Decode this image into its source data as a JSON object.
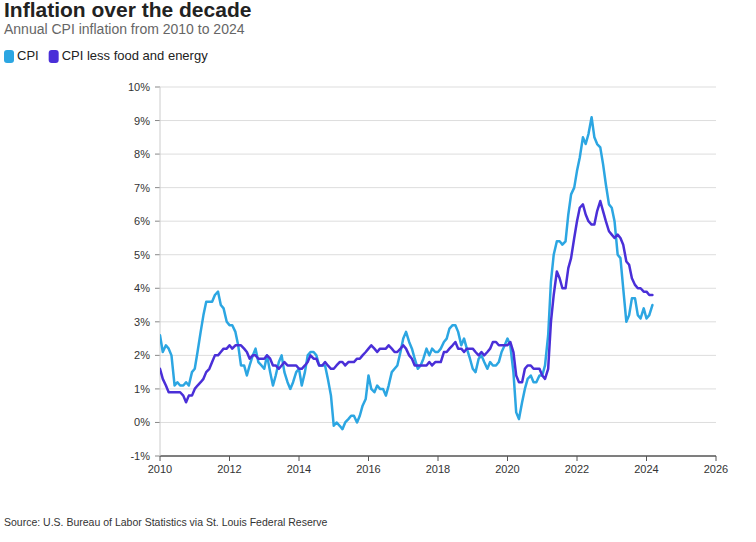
{
  "chart_data": {
    "type": "line",
    "title": "Inflation over the decade",
    "subtitle": "Annual CPI inflation from 2010 to 2024",
    "source": "Source: U.S. Bureau of Labor Statistics via St. Louis Federal Reserve",
    "legend": "top-left",
    "grid": true,
    "xlim": [
      2010,
      2026
    ],
    "xticks": [
      2010,
      2012,
      2014,
      2016,
      2018,
      2020,
      2022,
      2024,
      2026
    ],
    "ylim": [
      -1,
      10
    ],
    "yticks": [
      {
        "value": -1,
        "label": "-1%"
      },
      {
        "value": 0,
        "label": "0%"
      },
      {
        "value": 1,
        "label": "1%"
      },
      {
        "value": 2,
        "label": "2%"
      },
      {
        "value": 3,
        "label": "3%"
      },
      {
        "value": 4,
        "label": "4%"
      },
      {
        "value": 5,
        "label": "5%"
      },
      {
        "value": 6,
        "label": "6%"
      },
      {
        "value": 7,
        "label": "7%"
      },
      {
        "value": 8,
        "label": "8%"
      },
      {
        "value": 9,
        "label": "9%"
      },
      {
        "value": 10,
        "label": "10%"
      }
    ],
    "x": [
      2010,
      2010.08,
      2010.17,
      2010.25,
      2010.33,
      2010.42,
      2010.5,
      2010.58,
      2010.67,
      2010.75,
      2010.83,
      2010.92,
      2011,
      2011.08,
      2011.17,
      2011.25,
      2011.33,
      2011.42,
      2011.5,
      2011.58,
      2011.67,
      2011.75,
      2011.83,
      2011.92,
      2012,
      2012.08,
      2012.17,
      2012.25,
      2012.33,
      2012.42,
      2012.5,
      2012.58,
      2012.67,
      2012.75,
      2012.83,
      2012.92,
      2013,
      2013.08,
      2013.17,
      2013.25,
      2013.33,
      2013.42,
      2013.5,
      2013.58,
      2013.67,
      2013.75,
      2013.83,
      2013.92,
      2014,
      2014.08,
      2014.17,
      2014.25,
      2014.33,
      2014.42,
      2014.5,
      2014.58,
      2014.67,
      2014.75,
      2014.83,
      2014.92,
      2015,
      2015.08,
      2015.17,
      2015.25,
      2015.33,
      2015.42,
      2015.5,
      2015.58,
      2015.67,
      2015.75,
      2015.83,
      2015.92,
      2016,
      2016.08,
      2016.17,
      2016.25,
      2016.33,
      2016.42,
      2016.5,
      2016.58,
      2016.67,
      2016.75,
      2016.83,
      2016.92,
      2017,
      2017.08,
      2017.17,
      2017.25,
      2017.33,
      2017.42,
      2017.5,
      2017.58,
      2017.67,
      2017.75,
      2017.83,
      2017.92,
      2018,
      2018.08,
      2018.17,
      2018.25,
      2018.33,
      2018.42,
      2018.5,
      2018.58,
      2018.67,
      2018.75,
      2018.83,
      2018.92,
      2019,
      2019.08,
      2019.17,
      2019.25,
      2019.33,
      2019.42,
      2019.5,
      2019.58,
      2019.67,
      2019.75,
      2019.83,
      2019.92,
      2020,
      2020.08,
      2020.17,
      2020.25,
      2020.33,
      2020.42,
      2020.5,
      2020.58,
      2020.67,
      2020.75,
      2020.83,
      2020.92,
      2021,
      2021.08,
      2021.17,
      2021.25,
      2021.33,
      2021.42,
      2021.5,
      2021.58,
      2021.67,
      2021.75,
      2021.83,
      2021.92,
      2022,
      2022.08,
      2022.17,
      2022.25,
      2022.33,
      2022.42,
      2022.5,
      2022.58,
      2022.67,
      2022.75,
      2022.83,
      2022.92,
      2023,
      2023.08,
      2023.17,
      2023.25,
      2023.33,
      2023.42,
      2023.5,
      2023.58,
      2023.67,
      2023.75,
      2023.83,
      2023.92,
      2024,
      2024.08,
      2024.17
    ],
    "series": [
      {
        "name": "CPI",
        "color": "#2ca6e2",
        "values": [
          2.6,
          2.1,
          2.3,
          2.2,
          2.0,
          1.1,
          1.2,
          1.1,
          1.1,
          1.2,
          1.1,
          1.5,
          1.6,
          2.1,
          2.7,
          3.2,
          3.6,
          3.6,
          3.6,
          3.8,
          3.9,
          3.5,
          3.4,
          3.0,
          2.9,
          2.9,
          2.7,
          2.3,
          1.7,
          1.7,
          1.4,
          1.7,
          2.0,
          2.2,
          1.8,
          1.7,
          1.6,
          2.0,
          1.5,
          1.1,
          1.4,
          1.8,
          2.0,
          1.5,
          1.2,
          1.0,
          1.2,
          1.5,
          1.6,
          1.1,
          1.5,
          2.0,
          2.1,
          2.1,
          2.0,
          1.7,
          1.7,
          1.7,
          1.3,
          0.8,
          -0.1,
          0.0,
          -0.1,
          -0.2,
          0.0,
          0.1,
          0.2,
          0.2,
          0.0,
          0.2,
          0.5,
          0.7,
          1.4,
          1.0,
          0.9,
          1.1,
          1.0,
          1.0,
          0.8,
          1.1,
          1.5,
          1.6,
          1.7,
          2.1,
          2.5,
          2.7,
          2.4,
          2.2,
          1.9,
          1.6,
          1.7,
          1.9,
          2.2,
          2.0,
          2.2,
          2.1,
          2.1,
          2.2,
          2.4,
          2.5,
          2.8,
          2.9,
          2.9,
          2.7,
          2.3,
          2.5,
          2.2,
          1.9,
          1.6,
          1.5,
          1.9,
          2.0,
          1.8,
          1.6,
          1.8,
          1.7,
          1.7,
          1.8,
          2.1,
          2.3,
          2.5,
          2.3,
          1.5,
          0.3,
          0.1,
          0.6,
          1.0,
          1.3,
          1.4,
          1.2,
          1.2,
          1.4,
          1.4,
          1.7,
          2.6,
          4.2,
          5.0,
          5.4,
          5.4,
          5.3,
          5.4,
          6.2,
          6.8,
          7.0,
          7.5,
          7.9,
          8.5,
          8.3,
          8.6,
          9.1,
          8.5,
          8.3,
          8.2,
          7.7,
          7.1,
          6.5,
          6.4,
          6.0,
          5.0,
          4.9,
          4.0,
          3.0,
          3.2,
          3.7,
          3.7,
          3.2,
          3.1,
          3.4,
          3.1,
          3.2,
          3.5
        ]
      },
      {
        "name": "CPI less food and energy",
        "color": "#4a2fd8",
        "values": [
          1.6,
          1.3,
          1.1,
          0.9,
          0.9,
          0.9,
          0.9,
          0.9,
          0.8,
          0.6,
          0.8,
          0.8,
          1.0,
          1.1,
          1.2,
          1.3,
          1.5,
          1.6,
          1.8,
          2.0,
          2.0,
          2.1,
          2.2,
          2.2,
          2.3,
          2.2,
          2.3,
          2.3,
          2.3,
          2.2,
          2.1,
          1.9,
          2.0,
          2.0,
          1.9,
          1.9,
          1.9,
          2.0,
          1.9,
          1.7,
          1.7,
          1.6,
          1.7,
          1.8,
          1.7,
          1.7,
          1.7,
          1.7,
          1.6,
          1.6,
          1.7,
          1.8,
          2.0,
          1.9,
          1.9,
          1.7,
          1.7,
          1.8,
          1.7,
          1.6,
          1.6,
          1.7,
          1.8,
          1.8,
          1.7,
          1.8,
          1.8,
          1.8,
          1.9,
          1.9,
          2.0,
          2.1,
          2.2,
          2.3,
          2.2,
          2.1,
          2.2,
          2.2,
          2.2,
          2.3,
          2.2,
          2.1,
          2.1,
          2.2,
          2.3,
          2.2,
          2.0,
          1.9,
          1.7,
          1.7,
          1.7,
          1.7,
          1.7,
          1.8,
          1.7,
          1.8,
          1.8,
          1.8,
          2.1,
          2.1,
          2.2,
          2.3,
          2.4,
          2.2,
          2.2,
          2.1,
          2.2,
          2.2,
          2.2,
          2.1,
          2.0,
          2.1,
          2.0,
          2.1,
          2.2,
          2.4,
          2.4,
          2.3,
          2.3,
          2.3,
          2.3,
          2.4,
          2.1,
          1.4,
          1.2,
          1.2,
          1.6,
          1.7,
          1.7,
          1.6,
          1.6,
          1.6,
          1.4,
          1.3,
          1.6,
          3.0,
          3.8,
          4.5,
          4.3,
          4.0,
          4.0,
          4.6,
          4.9,
          5.5,
          6.0,
          6.4,
          6.5,
          6.2,
          6.0,
          5.9,
          5.9,
          6.3,
          6.6,
          6.3,
          6.0,
          5.7,
          5.6,
          5.5,
          5.6,
          5.5,
          5.3,
          4.8,
          4.7,
          4.3,
          4.1,
          4.0,
          4.0,
          3.9,
          3.9,
          3.8,
          3.8
        ]
      }
    ]
  }
}
